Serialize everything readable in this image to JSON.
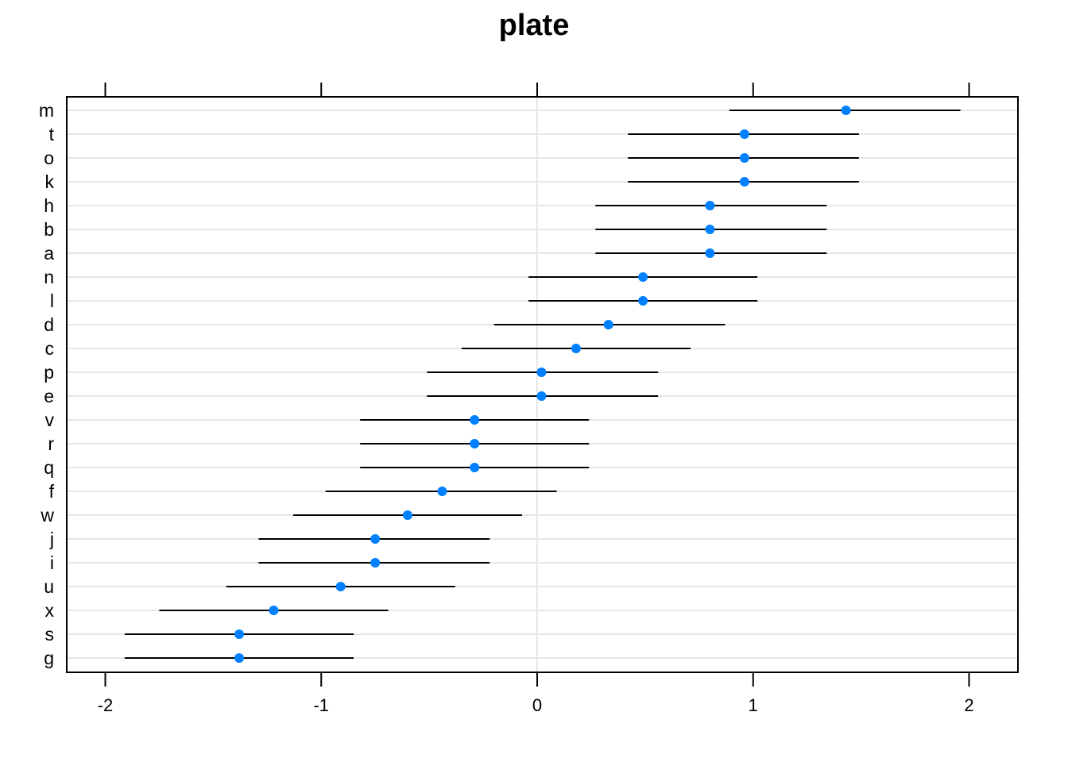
{
  "chart_data": {
    "type": "dotplot",
    "title": "plate",
    "xlabel": "",
    "ylabel": "",
    "xlim": [
      -2.2,
      2.2
    ],
    "xticks": [
      -2,
      -1,
      0,
      1,
      2
    ],
    "xtick_labels": [
      "-2",
      "-1",
      "0",
      "1",
      "2"
    ],
    "reference_line_x": 0,
    "grid": true,
    "point_color": "#0080ff",
    "interval_color": "#000000",
    "grid_color": "#e6e6e6",
    "categories": [
      "m",
      "t",
      "o",
      "k",
      "h",
      "b",
      "a",
      "n",
      "l",
      "d",
      "c",
      "p",
      "e",
      "v",
      "r",
      "q",
      "f",
      "w",
      "j",
      "i",
      "u",
      "x",
      "s",
      "g"
    ],
    "values": [
      1.43,
      0.96,
      0.96,
      0.96,
      0.8,
      0.8,
      0.8,
      0.49,
      0.49,
      0.33,
      0.18,
      0.02,
      0.02,
      -0.29,
      -0.29,
      -0.29,
      -0.44,
      -0.6,
      -0.75,
      -0.75,
      -0.91,
      -1.22,
      -1.38,
      -1.38
    ],
    "lower": [
      0.89,
      0.42,
      0.42,
      0.42,
      0.27,
      0.27,
      0.27,
      -0.04,
      -0.04,
      -0.2,
      -0.35,
      -0.51,
      -0.51,
      -0.82,
      -0.82,
      -0.82,
      -0.98,
      -1.13,
      -1.29,
      -1.29,
      -1.44,
      -1.75,
      -1.91,
      -1.91
    ],
    "upper": [
      1.96,
      1.49,
      1.49,
      1.49,
      1.34,
      1.34,
      1.34,
      1.02,
      1.02,
      0.87,
      0.71,
      0.56,
      0.56,
      0.24,
      0.24,
      0.24,
      0.09,
      -0.07,
      -0.22,
      -0.22,
      -0.38,
      -0.69,
      -0.85,
      -0.85
    ]
  }
}
